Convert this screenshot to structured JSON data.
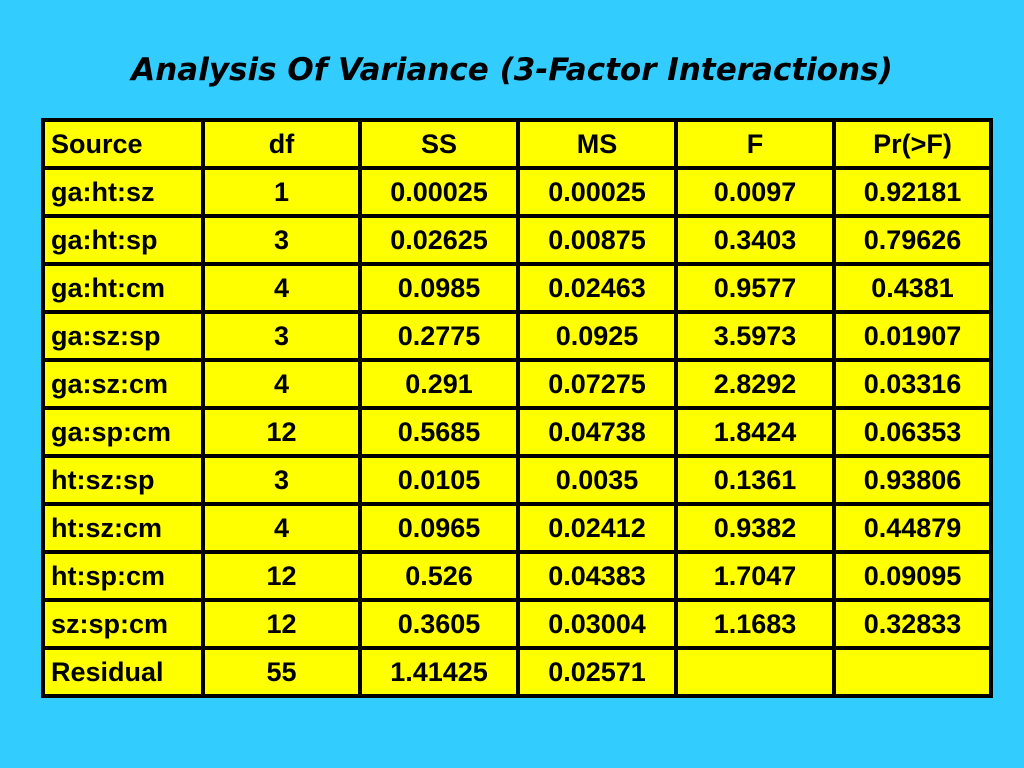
{
  "slide": {
    "title": "Analysis Of Variance (3-Factor Interactions)"
  },
  "table": {
    "headers": [
      "Source",
      "df",
      "SS",
      "MS",
      "F",
      "Pr(>F)"
    ],
    "rows": [
      [
        "ga:ht:sz",
        "1",
        "0.00025",
        "0.00025",
        "0.0097",
        "0.92181"
      ],
      [
        "ga:ht:sp",
        "3",
        "0.02625",
        "0.00875",
        "0.3403",
        "0.79626"
      ],
      [
        "ga:ht:cm",
        "4",
        "0.0985",
        "0.02463",
        "0.9577",
        "0.4381"
      ],
      [
        "ga:sz:sp",
        "3",
        "0.2775",
        "0.0925",
        "3.5973",
        "0.01907"
      ],
      [
        "ga:sz:cm",
        "4",
        "0.291",
        "0.07275",
        "2.8292",
        "0.03316"
      ],
      [
        "ga:sp:cm",
        "12",
        "0.5685",
        "0.04738",
        "1.8424",
        "0.06353"
      ],
      [
        "ht:sz:sp",
        "3",
        "0.0105",
        "0.0035",
        "0.1361",
        "0.93806"
      ],
      [
        "ht:sz:cm",
        "4",
        "0.0965",
        "0.02412",
        "0.9382",
        "0.44879"
      ],
      [
        "ht:sp:cm",
        "12",
        "0.526",
        "0.04383",
        "1.7047",
        "0.09095"
      ],
      [
        "sz:sp:cm",
        "12",
        "0.3605",
        "0.03004",
        "1.1683",
        "0.32833"
      ],
      [
        "Residual",
        "55",
        "1.41425",
        "0.02571",
        "",
        ""
      ]
    ]
  },
  "colors": {
    "background": "#33ccff",
    "table_fill": "#ffff00",
    "border": "#000000",
    "text": "#000000"
  }
}
